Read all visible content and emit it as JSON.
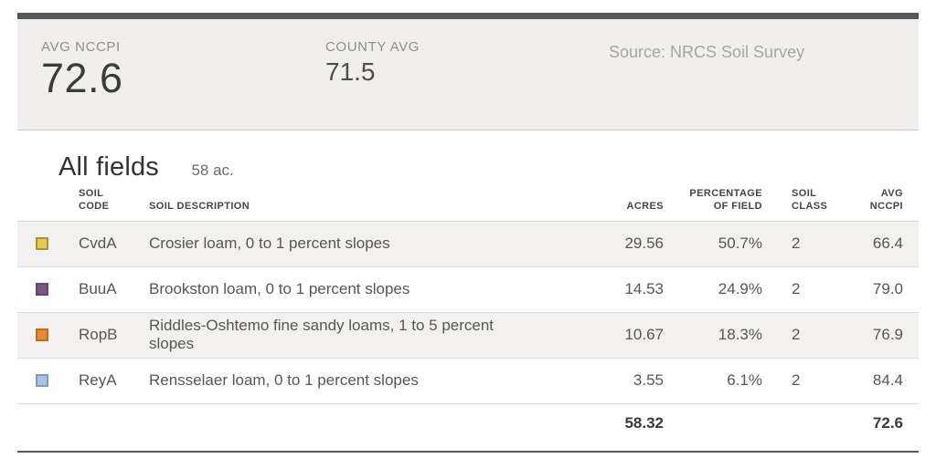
{
  "header": {
    "stats": [
      {
        "label": "AVG NCCPI",
        "value": "72.6"
      },
      {
        "label": "COUNTY AVG",
        "value": "71.5"
      }
    ],
    "source": "Source: NRCS Soil Survey"
  },
  "section": {
    "title": "All fields",
    "acreage": "58 ac."
  },
  "table": {
    "columns": {
      "soil_code": "SOIL\nCODE",
      "soil_description": "SOIL DESCRIPTION",
      "acres": "ACRES",
      "percentage_of_field": "PERCENTAGE\nOF FIELD",
      "soil_class": "SOIL\nCLASS",
      "avg_nccpi": "AVG\nNCCPI"
    },
    "rows": [
      {
        "swatch_color": "#e3ca53",
        "swatch_border": "#a8913c",
        "code": "CvdA",
        "description": "Crosier loam, 0 to 1 percent slopes",
        "acres": "29.56",
        "percentage": "50.7%",
        "soil_class": "2",
        "avg_nccpi": "66.4"
      },
      {
        "swatch_color": "#75597f",
        "swatch_border": "#614a6e",
        "code": "BuuA",
        "description": "Brookston loam, 0 to 1 percent slopes",
        "acres": "14.53",
        "percentage": "24.9%",
        "soil_class": "2",
        "avg_nccpi": "79.0"
      },
      {
        "swatch_color": "#e88a2e",
        "swatch_border": "#b5702d",
        "code": "RopB",
        "description": "Riddles-Oshtemo fine sandy loams, 1 to 5 percent slopes",
        "acres": "10.67",
        "percentage": "18.3%",
        "soil_class": "2",
        "avg_nccpi": "76.9"
      },
      {
        "swatch_color": "#a9c3df",
        "swatch_border": "#7f9cc0",
        "code": "ReyA",
        "description": "Rensselaer loam, 0 to 1 percent slopes",
        "acres": "3.55",
        "percentage": "6.1%",
        "soil_class": "2",
        "avg_nccpi": "84.4"
      }
    ],
    "totals": {
      "acres": "58.32",
      "avg_nccpi": "72.6"
    }
  },
  "colors": {
    "accent_bar": "#57575a",
    "panel_bg": "#f0efed",
    "stripe_bg": "#f2f1ef"
  }
}
